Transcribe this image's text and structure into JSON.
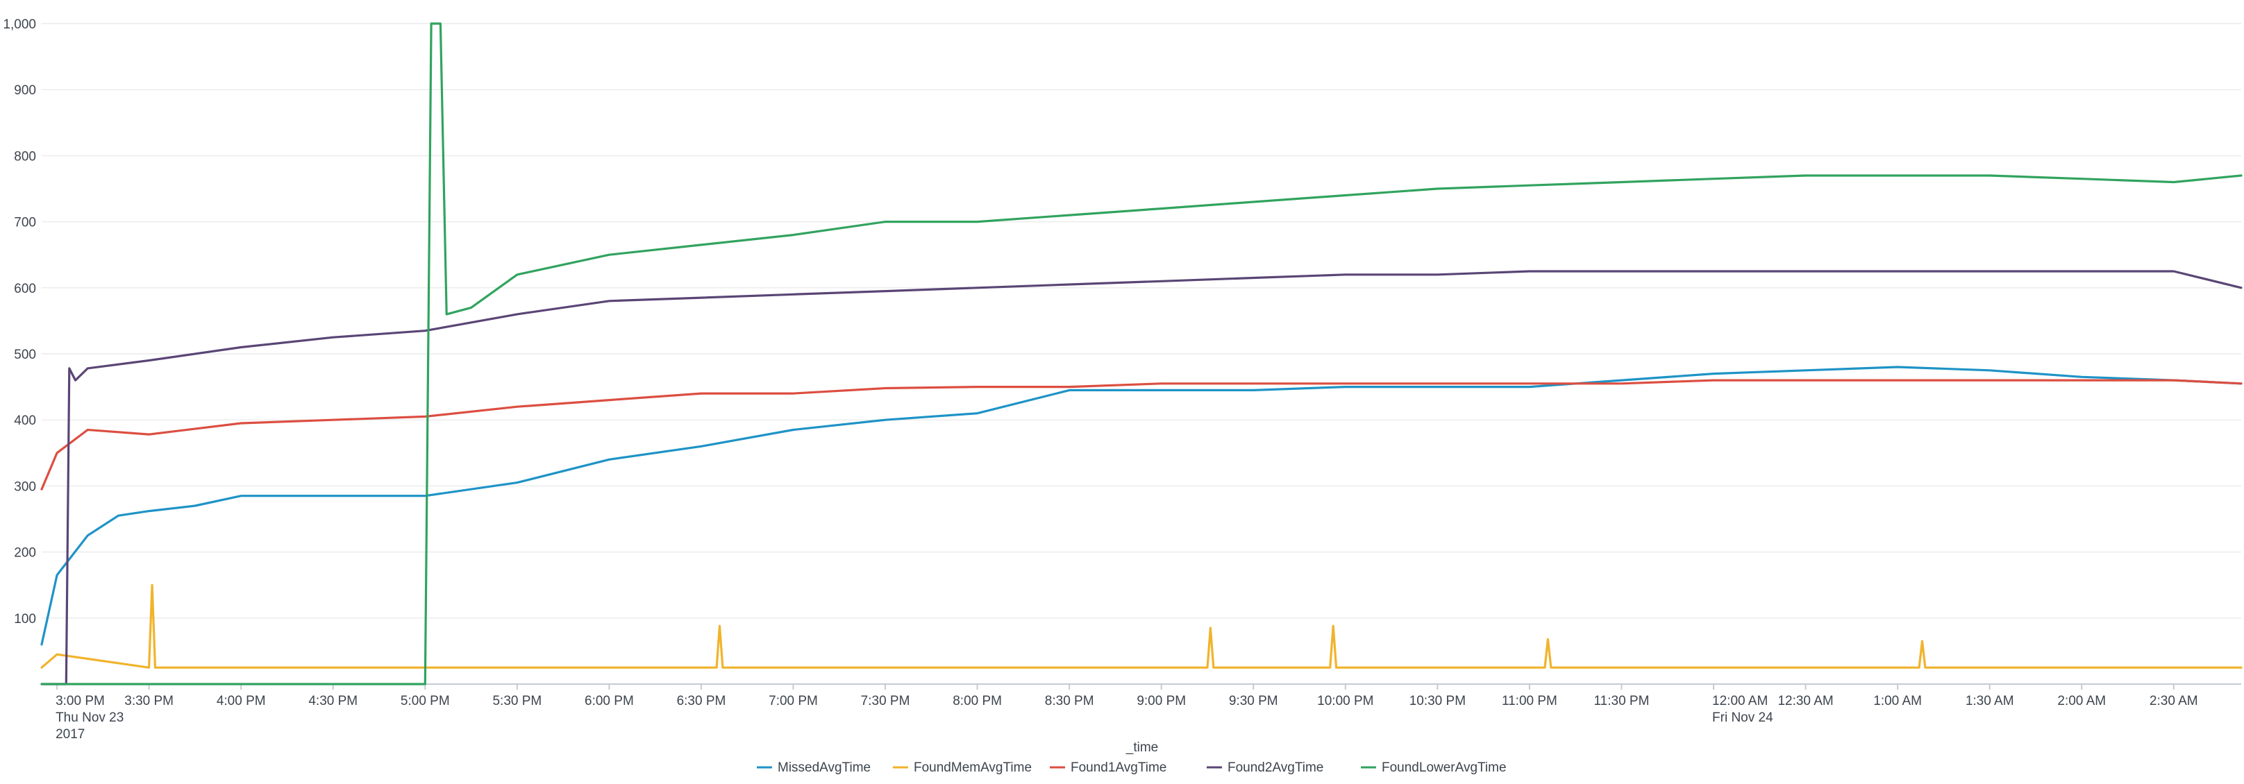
{
  "chart_data": {
    "type": "line",
    "xlabel": "_time",
    "ylabel": "",
    "ylim": [
      0,
      1000
    ],
    "grid": true,
    "legend_position": "bottom",
    "y_ticks": [
      {
        "value": 100,
        "label": "100"
      },
      {
        "value": 200,
        "label": "200"
      },
      {
        "value": 300,
        "label": "300"
      },
      {
        "value": 400,
        "label": "400"
      },
      {
        "value": 500,
        "label": "500"
      },
      {
        "value": 600,
        "label": "600"
      },
      {
        "value": 700,
        "label": "700"
      },
      {
        "value": 800,
        "label": "800"
      },
      {
        "value": 900,
        "label": "900"
      },
      {
        "value": 1000,
        "label": "1,000"
      }
    ],
    "x_range": [
      "2017-11-23T14:55",
      "2017-11-24T02:52"
    ],
    "x_ticks": [
      {
        "time": "2017-11-23T15:00",
        "lines": [
          "3:00 PM",
          "Thu Nov 23",
          "2017"
        ]
      },
      {
        "time": "2017-11-23T15:30",
        "lines": [
          "3:30 PM"
        ]
      },
      {
        "time": "2017-11-23T16:00",
        "lines": [
          "4:00 PM"
        ]
      },
      {
        "time": "2017-11-23T16:30",
        "lines": [
          "4:30 PM"
        ]
      },
      {
        "time": "2017-11-23T17:00",
        "lines": [
          "5:00 PM"
        ]
      },
      {
        "time": "2017-11-23T17:30",
        "lines": [
          "5:30 PM"
        ]
      },
      {
        "time": "2017-11-23T18:00",
        "lines": [
          "6:00 PM"
        ]
      },
      {
        "time": "2017-11-23T18:30",
        "lines": [
          "6:30 PM"
        ]
      },
      {
        "time": "2017-11-23T19:00",
        "lines": [
          "7:00 PM"
        ]
      },
      {
        "time": "2017-11-23T19:30",
        "lines": [
          "7:30 PM"
        ]
      },
      {
        "time": "2017-11-23T20:00",
        "lines": [
          "8:00 PM"
        ]
      },
      {
        "time": "2017-11-23T20:30",
        "lines": [
          "8:30 PM"
        ]
      },
      {
        "time": "2017-11-23T21:00",
        "lines": [
          "9:00 PM"
        ]
      },
      {
        "time": "2017-11-23T21:30",
        "lines": [
          "9:30 PM"
        ]
      },
      {
        "time": "2017-11-23T22:00",
        "lines": [
          "10:00 PM"
        ]
      },
      {
        "time": "2017-11-23T22:30",
        "lines": [
          "10:30 PM"
        ]
      },
      {
        "time": "2017-11-23T23:00",
        "lines": [
          "11:00 PM"
        ]
      },
      {
        "time": "2017-11-23T23:30",
        "lines": [
          "11:30 PM"
        ]
      },
      {
        "time": "2017-11-24T00:00",
        "lines": [
          "12:00 AM",
          "Fri Nov 24"
        ]
      },
      {
        "time": "2017-11-24T00:30",
        "lines": [
          "12:30 AM"
        ]
      },
      {
        "time": "2017-11-24T01:00",
        "lines": [
          "1:00 AM"
        ]
      },
      {
        "time": "2017-11-24T01:30",
        "lines": [
          "1:30 AM"
        ]
      },
      {
        "time": "2017-11-24T02:00",
        "lines": [
          "2:00 AM"
        ]
      },
      {
        "time": "2017-11-24T02:30",
        "lines": [
          "2:30 AM"
        ]
      }
    ],
    "series": [
      {
        "name": "MissedAvgTime",
        "color": "#1e93c6",
        "x": [
          "2017-11-23T14:55",
          "2017-11-23T15:00",
          "2017-11-23T15:10",
          "2017-11-23T15:20",
          "2017-11-23T15:30",
          "2017-11-23T15:45",
          "2017-11-23T16:00",
          "2017-11-23T16:30",
          "2017-11-23T17:00",
          "2017-11-23T17:30",
          "2017-11-23T18:00",
          "2017-11-23T18:30",
          "2017-11-23T19:00",
          "2017-11-23T19:30",
          "2017-11-23T20:00",
          "2017-11-23T20:30",
          "2017-11-23T21:00",
          "2017-11-23T21:30",
          "2017-11-23T22:00",
          "2017-11-23T22:30",
          "2017-11-23T23:00",
          "2017-11-23T23:30",
          "2017-11-24T00:00",
          "2017-11-24T00:30",
          "2017-11-24T01:00",
          "2017-11-24T01:30",
          "2017-11-24T02:00",
          "2017-11-24T02:30",
          "2017-11-24T02:52"
        ],
        "y": [
          60,
          165,
          225,
          255,
          262,
          270,
          285,
          285,
          285,
          305,
          340,
          360,
          385,
          400,
          410,
          445,
          445,
          445,
          450,
          450,
          450,
          460,
          470,
          475,
          480,
          475,
          465,
          460,
          455
        ]
      },
      {
        "name": "FoundMemAvgTime",
        "color": "#f1b32b",
        "x": [
          "2017-11-23T14:55",
          "2017-11-23T15:00",
          "2017-11-23T15:30",
          "2017-11-23T15:31",
          "2017-11-23T15:32",
          "2017-11-23T16:00",
          "2017-11-23T17:00",
          "2017-11-23T17:30",
          "2017-11-23T18:00",
          "2017-11-23T18:35",
          "2017-11-23T18:36",
          "2017-11-23T18:37",
          "2017-11-23T19:00",
          "2017-11-23T19:30",
          "2017-11-23T20:00",
          "2017-11-23T20:30",
          "2017-11-23T21:00",
          "2017-11-23T21:15",
          "2017-11-23T21:16",
          "2017-11-23T21:17",
          "2017-11-23T21:30",
          "2017-11-23T21:55",
          "2017-11-23T21:56",
          "2017-11-23T21:57",
          "2017-11-23T22:30",
          "2017-11-23T23:05",
          "2017-11-23T23:06",
          "2017-11-23T23:07",
          "2017-11-23T23:30",
          "2017-11-24T00:00",
          "2017-11-24T00:30",
          "2017-11-24T01:00",
          "2017-11-24T01:07",
          "2017-11-24T01:08",
          "2017-11-24T01:09",
          "2017-11-24T01:30",
          "2017-11-24T02:00",
          "2017-11-24T02:30",
          "2017-11-24T02:52"
        ],
        "y": [
          25,
          45,
          25,
          150,
          25,
          25,
          25,
          25,
          25,
          25,
          88,
          25,
          25,
          25,
          25,
          25,
          25,
          25,
          85,
          25,
          25,
          25,
          88,
          25,
          25,
          25,
          68,
          25,
          25,
          25,
          25,
          25,
          25,
          65,
          25,
          25,
          25,
          25,
          25
        ]
      },
      {
        "name": "Found1AvgTime",
        "color": "#dc4e41",
        "x": [
          "2017-11-23T14:55",
          "2017-11-23T15:00",
          "2017-11-23T15:10",
          "2017-11-23T15:30",
          "2017-11-23T16:00",
          "2017-11-23T16:30",
          "2017-11-23T17:00",
          "2017-11-23T17:30",
          "2017-11-23T18:00",
          "2017-11-23T18:30",
          "2017-11-23T19:00",
          "2017-11-23T19:30",
          "2017-11-23T20:00",
          "2017-11-23T20:30",
          "2017-11-23T21:00",
          "2017-11-23T21:30",
          "2017-11-23T22:00",
          "2017-11-23T22:30",
          "2017-11-23T23:00",
          "2017-11-23T23:30",
          "2017-11-24T00:00",
          "2017-11-24T00:30",
          "2017-11-24T01:00",
          "2017-11-24T01:30",
          "2017-11-24T02:00",
          "2017-11-24T02:30",
          "2017-11-24T02:52"
        ],
        "y": [
          295,
          350,
          385,
          378,
          395,
          400,
          405,
          420,
          430,
          440,
          440,
          448,
          450,
          450,
          455,
          455,
          455,
          455,
          455,
          455,
          460,
          460,
          460,
          460,
          460,
          460,
          455
        ]
      },
      {
        "name": "Found2AvgTime",
        "color": "#5a4575",
        "x": [
          "2017-11-23T14:55",
          "2017-11-23T15:03",
          "2017-11-23T15:04",
          "2017-11-23T15:06",
          "2017-11-23T15:10",
          "2017-11-23T15:30",
          "2017-11-23T16:00",
          "2017-11-23T16:30",
          "2017-11-23T17:00",
          "2017-11-23T17:30",
          "2017-11-23T18:00",
          "2017-11-23T18:30",
          "2017-11-23T19:00",
          "2017-11-23T19:30",
          "2017-11-23T20:00",
          "2017-11-23T20:30",
          "2017-11-23T21:00",
          "2017-11-23T21:30",
          "2017-11-23T22:00",
          "2017-11-23T22:30",
          "2017-11-23T23:00",
          "2017-11-23T23:30",
          "2017-11-24T00:00",
          "2017-11-24T00:30",
          "2017-11-24T01:00",
          "2017-11-24T01:30",
          "2017-11-24T02:00",
          "2017-11-24T02:30",
          "2017-11-24T02:52"
        ],
        "y": [
          0,
          0,
          478,
          460,
          478,
          490,
          510,
          525,
          535,
          560,
          580,
          585,
          590,
          595,
          600,
          605,
          610,
          615,
          620,
          620,
          625,
          625,
          625,
          625,
          625,
          625,
          625,
          625,
          600
        ]
      },
      {
        "name": "FoundLowerAvgTime",
        "color": "#31a35f",
        "x": [
          "2017-11-23T14:55",
          "2017-11-23T17:00",
          "2017-11-23T17:01",
          "2017-11-23T17:02",
          "2017-11-23T17:03",
          "2017-11-23T17:05",
          "2017-11-23T17:07",
          "2017-11-23T17:15",
          "2017-11-23T17:30",
          "2017-11-23T18:00",
          "2017-11-23T18:30",
          "2017-11-23T19:00",
          "2017-11-23T19:30",
          "2017-11-23T20:00",
          "2017-11-23T20:30",
          "2017-11-23T21:00",
          "2017-11-23T21:30",
          "2017-11-23T22:00",
          "2017-11-23T22:30",
          "2017-11-23T23:00",
          "2017-11-23T23:30",
          "2017-11-24T00:00",
          "2017-11-24T00:30",
          "2017-11-24T01:00",
          "2017-11-24T01:30",
          "2017-11-24T02:00",
          "2017-11-24T02:30",
          "2017-11-24T02:52"
        ],
        "y": [
          0,
          0,
          500,
          1000,
          1000,
          1000,
          560,
          570,
          620,
          650,
          665,
          680,
          700,
          700,
          710,
          720,
          730,
          740,
          750,
          755,
          760,
          765,
          770,
          770,
          770,
          765,
          760,
          770
        ]
      }
    ]
  }
}
